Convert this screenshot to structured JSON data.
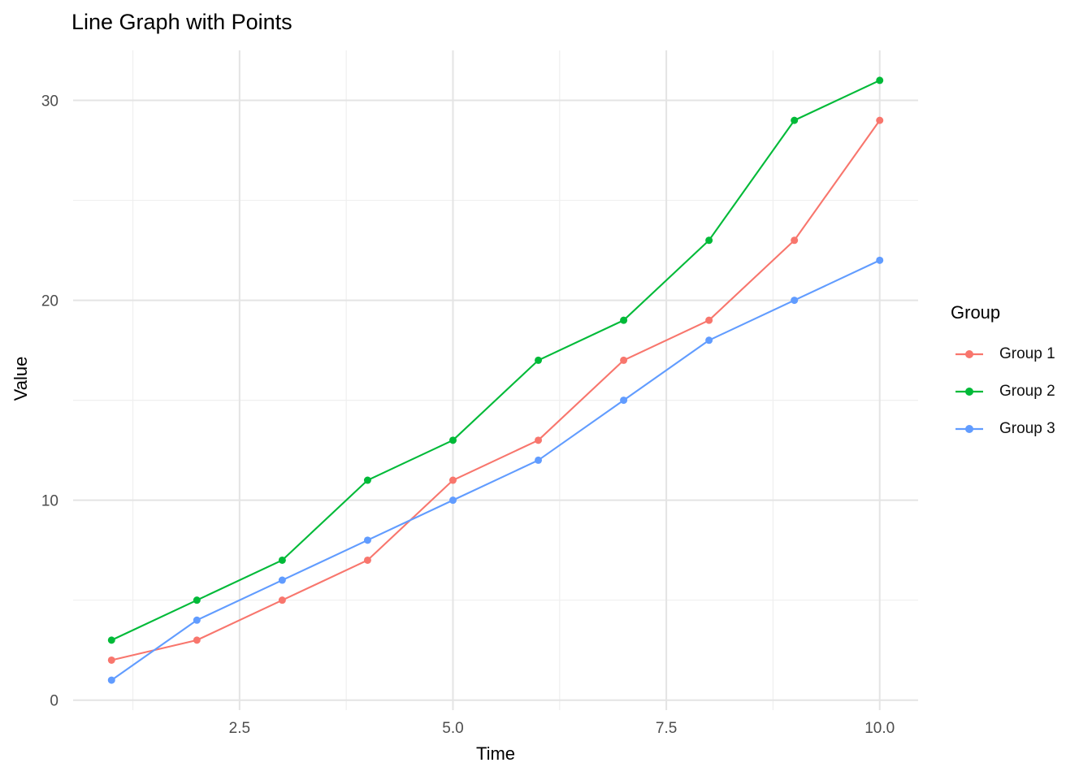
{
  "chart": {
    "title": "Line Graph with Points",
    "xlabel": "Time",
    "ylabel": "Value"
  },
  "legend": {
    "title": "Group"
  },
  "style": {
    "background": "#FFFFFF",
    "grid_major": "#E4E4E4",
    "grid_minor": "#EFEFEF",
    "tick_color": "#4D4D4D",
    "title_color": "#000000"
  },
  "chart_data": {
    "type": "line",
    "title": "Line Graph with Points",
    "xlabel": "Time",
    "ylabel": "Value",
    "x": [
      1,
      2,
      3,
      4,
      5,
      6,
      7,
      8,
      9,
      10
    ],
    "series": [
      {
        "name": "Group 1",
        "color": "#F8766D",
        "values": [
          2,
          3,
          5,
          7,
          11,
          13,
          17,
          19,
          23,
          29
        ]
      },
      {
        "name": "Group 2",
        "color": "#00BA38",
        "values": [
          3,
          5,
          7,
          11,
          13,
          17,
          19,
          23,
          29,
          31
        ]
      },
      {
        "name": "Group 3",
        "color": "#619CFF",
        "values": [
          1,
          4,
          6,
          8,
          10,
          12,
          15,
          18,
          20,
          22
        ]
      }
    ],
    "x_ticks": [
      2.5,
      5.0,
      7.5,
      10.0
    ],
    "x_tick_labels": [
      "2.5",
      "5.0",
      "7.5",
      "10.0"
    ],
    "x_minor_ticks": [
      1.25,
      3.75,
      6.25,
      8.75
    ],
    "y_ticks": [
      0,
      10,
      20,
      30
    ],
    "y_tick_labels": [
      "0",
      "10",
      "20",
      "30"
    ],
    "y_minor_ticks": [
      5,
      15,
      25
    ],
    "xlim": [
      0.55,
      10.45
    ],
    "ylim": [
      -0.5,
      32.5
    ],
    "grid": true,
    "legend_title": "Group",
    "legend_position": "right",
    "marker": "point"
  }
}
